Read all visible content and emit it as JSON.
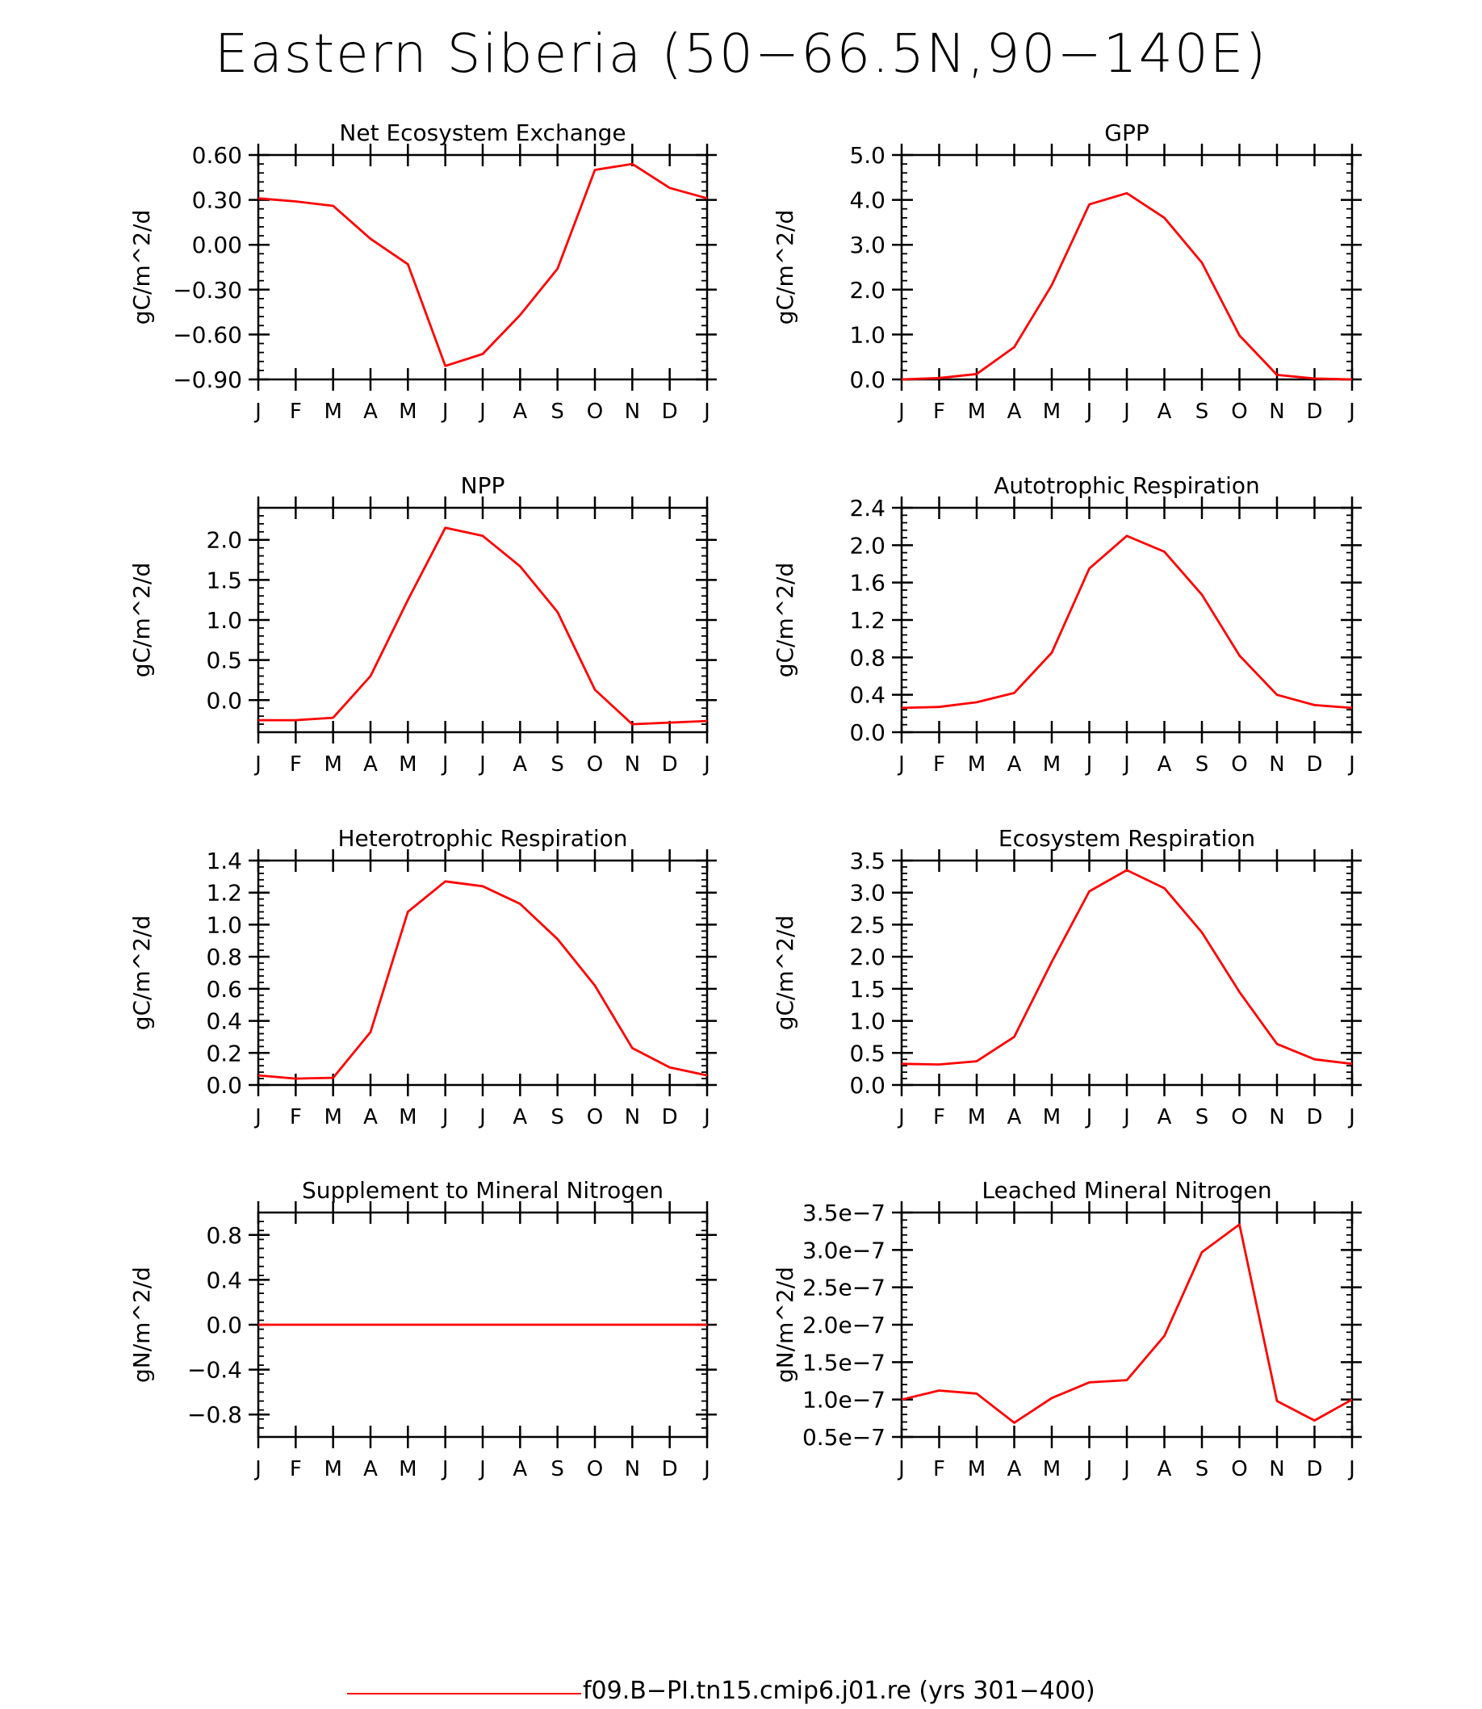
{
  "figure": {
    "title": "Eastern Siberia (50−66.5N,90−140E)",
    "line_color": "#ff0000",
    "legend_label": "f09.B−PI.tn15.cmip6.j01.re (yrs 301−400)"
  },
  "chart_data": [
    {
      "type": "line",
      "title": "Net Ecosystem Exchange",
      "ylabel": "gC/m^2/d",
      "x_tick_labels": [
        "J",
        "F",
        "M",
        "A",
        "M",
        "J",
        "J",
        "A",
        "S",
        "O",
        "N",
        "D",
        "J"
      ],
      "ylim": [
        -0.9,
        0.6
      ],
      "y_ticks": [
        -0.9,
        -0.6,
        -0.3,
        0.0,
        0.3,
        0.6
      ],
      "y_tick_labels": [
        "−0.90",
        "−0.60",
        "−0.30",
        "0.00",
        "0.30",
        "0.60"
      ],
      "values": [
        0.31,
        0.29,
        0.26,
        0.04,
        -0.13,
        -0.81,
        -0.73,
        -0.47,
        -0.16,
        0.5,
        0.54,
        0.38,
        0.31
      ]
    },
    {
      "type": "line",
      "title": "GPP",
      "ylabel": "gC/m^2/d",
      "x_tick_labels": [
        "J",
        "F",
        "M",
        "A",
        "M",
        "J",
        "J",
        "A",
        "S",
        "O",
        "N",
        "D",
        "J"
      ],
      "ylim": [
        0.0,
        5.0
      ],
      "y_ticks": [
        0,
        1,
        2,
        3,
        4,
        5
      ],
      "y_tick_labels": [
        "0.0",
        "1.0",
        "2.0",
        "3.0",
        "4.0",
        "5.0"
      ],
      "values": [
        0.0,
        0.03,
        0.12,
        0.72,
        2.1,
        3.9,
        4.15,
        3.6,
        2.6,
        0.98,
        0.1,
        0.02,
        0.0
      ]
    },
    {
      "type": "line",
      "title": "NPP",
      "ylabel": "gC/m^2/d",
      "x_tick_labels": [
        "J",
        "F",
        "M",
        "A",
        "M",
        "J",
        "J",
        "A",
        "S",
        "O",
        "N",
        "D",
        "J"
      ],
      "ylim": [
        -0.4,
        2.4
      ],
      "y_ticks": [
        0.0,
        0.5,
        1.0,
        1.5,
        2.0
      ],
      "y_tick_labels": [
        "0.0",
        "0.5",
        "1.0",
        "1.5",
        "2.0"
      ],
      "values": [
        -0.25,
        -0.25,
        -0.22,
        0.3,
        1.25,
        2.15,
        2.05,
        1.67,
        1.1,
        0.13,
        -0.3,
        -0.28,
        -0.26
      ]
    },
    {
      "type": "line",
      "title": "Autotrophic Respiration",
      "ylabel": "gC/m^2/d",
      "x_tick_labels": [
        "J",
        "F",
        "M",
        "A",
        "M",
        "J",
        "J",
        "A",
        "S",
        "O",
        "N",
        "D",
        "J"
      ],
      "ylim": [
        0.0,
        2.4
      ],
      "y_ticks": [
        0.0,
        0.4,
        0.8,
        1.2,
        1.6,
        2.0,
        2.4
      ],
      "y_tick_labels": [
        "0.0",
        "0.4",
        "0.8",
        "1.2",
        "1.6",
        "2.0",
        "2.4"
      ],
      "values": [
        0.26,
        0.27,
        0.32,
        0.42,
        0.85,
        1.75,
        2.1,
        1.93,
        1.47,
        0.82,
        0.4,
        0.29,
        0.26
      ]
    },
    {
      "type": "line",
      "title": "Heterotrophic Respiration",
      "ylabel": "gC/m^2/d",
      "x_tick_labels": [
        "J",
        "F",
        "M",
        "A",
        "M",
        "J",
        "J",
        "A",
        "S",
        "O",
        "N",
        "D",
        "J"
      ],
      "ylim": [
        0.0,
        1.4
      ],
      "y_ticks": [
        0.0,
        0.2,
        0.4,
        0.6,
        0.8,
        1.0,
        1.2,
        1.4
      ],
      "y_tick_labels": [
        "0.0",
        "0.2",
        "0.4",
        "0.6",
        "0.8",
        "1.0",
        "1.2",
        "1.4"
      ],
      "values": [
        0.06,
        0.04,
        0.045,
        0.33,
        1.08,
        1.27,
        1.24,
        1.13,
        0.91,
        0.62,
        0.23,
        0.11,
        0.06
      ]
    },
    {
      "type": "line",
      "title": "Ecosystem Respiration",
      "ylabel": "gC/m^2/d",
      "x_tick_labels": [
        "J",
        "F",
        "M",
        "A",
        "M",
        "J",
        "J",
        "A",
        "S",
        "O",
        "N",
        "D",
        "J"
      ],
      "ylim": [
        0.0,
        3.5
      ],
      "y_ticks": [
        0.0,
        0.5,
        1.0,
        1.5,
        2.0,
        2.5,
        3.0,
        3.5
      ],
      "y_tick_labels": [
        "0.0",
        "0.5",
        "1.0",
        "1.5",
        "2.0",
        "2.5",
        "3.0",
        "3.5"
      ],
      "values": [
        0.33,
        0.32,
        0.37,
        0.75,
        1.92,
        3.02,
        3.35,
        3.07,
        2.38,
        1.45,
        0.64,
        0.4,
        0.33
      ]
    },
    {
      "type": "line",
      "title": "Supplement to Mineral Nitrogen",
      "ylabel": "gN/m^2/d",
      "x_tick_labels": [
        "J",
        "F",
        "M",
        "A",
        "M",
        "J",
        "J",
        "A",
        "S",
        "O",
        "N",
        "D",
        "J"
      ],
      "ylim": [
        -1.0,
        1.0
      ],
      "y_ticks": [
        -0.8,
        -0.4,
        0.0,
        0.4,
        0.8
      ],
      "y_tick_labels": [
        "−0.8",
        "−0.4",
        "0.0",
        "0.4",
        "0.8"
      ],
      "values": [
        0,
        0,
        0,
        0,
        0,
        0,
        0,
        0,
        0,
        0,
        0,
        0,
        0
      ]
    },
    {
      "type": "line",
      "title": "Leached Mineral Nitrogen",
      "ylabel": "gN/m^2/d",
      "x_tick_labels": [
        "J",
        "F",
        "M",
        "A",
        "M",
        "J",
        "J",
        "A",
        "S",
        "O",
        "N",
        "D",
        "J"
      ],
      "ylim": [
        5e-08,
        3.5e-07
      ],
      "y_ticks": [
        5e-08,
        1e-07,
        1.5e-07,
        2e-07,
        2.5e-07,
        3e-07,
        3.5e-07
      ],
      "y_tick_labels": [
        "0.5e−7",
        "1.0e−7",
        "1.5e−7",
        "2.0e−7",
        "2.5e−7",
        "3.0e−7",
        "3.5e−7"
      ],
      "values": [
        1e-07,
        1.12e-07,
        1.08e-07,
        6.9e-08,
        1.02e-07,
        1.23e-07,
        1.26e-07,
        1.85e-07,
        2.97e-07,
        3.34e-07,
        9.8e-08,
        7.2e-08,
        1e-07
      ]
    }
  ]
}
